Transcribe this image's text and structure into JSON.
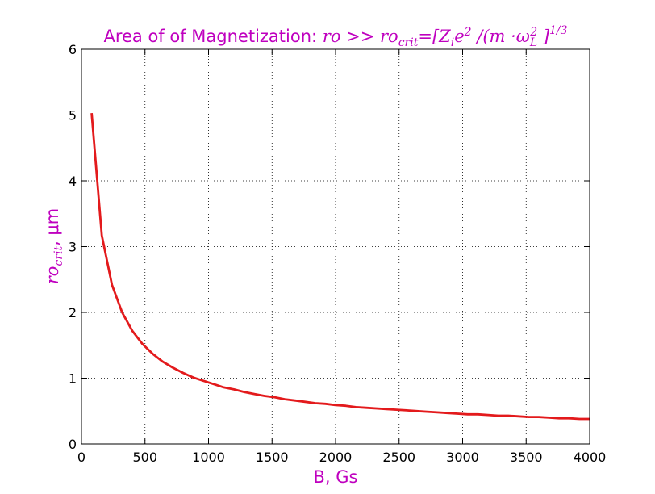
{
  "chart_data": {
    "type": "line",
    "title_prefix": "Area of of Magnetization: ",
    "title_math_1": "ro",
    "title_mid": " >> ",
    "title_math_2": "ro",
    "title_sub_crit": "crit",
    "title_eq": "=[Z",
    "title_sub_i": "i",
    "title_e": "e",
    "title_sup_2a": "2",
    "title_div": " /(m ·ω",
    "title_sub_L": "L",
    "title_sup_2b": "2",
    "title_close": " ]",
    "title_sup_13": "1/3",
    "xlabel": "B, Gs",
    "ylabel_math": "ro",
    "ylabel_sub": "crit",
    "ylabel_rest": ", μm",
    "xlim": [
      0,
      4000
    ],
    "ylim": [
      0,
      6
    ],
    "xticks": [
      0,
      500,
      1000,
      1500,
      2000,
      2500,
      3000,
      3500,
      4000
    ],
    "yticks": [
      0,
      1,
      2,
      3,
      4,
      5,
      6
    ],
    "grid": true,
    "series": [
      {
        "color": "#e31a1c",
        "x": [
          80,
          160,
          240,
          320,
          400,
          480,
          560,
          640,
          720,
          800,
          880,
          960,
          1040,
          1120,
          1200,
          1280,
          1360,
          1440,
          1520,
          1600,
          1680,
          1760,
          1840,
          1920,
          2000,
          2080,
          2160,
          2240,
          2320,
          2400,
          2480,
          2560,
          2640,
          2720,
          2800,
          2880,
          2960,
          3040,
          3120,
          3200,
          3280,
          3360,
          3440,
          3520,
          3600,
          3680,
          3760,
          3840,
          3920,
          4000
        ],
        "y": [
          5.03,
          3.17,
          2.42,
          2.0,
          1.72,
          1.52,
          1.37,
          1.25,
          1.16,
          1.08,
          1.01,
          0.96,
          0.91,
          0.86,
          0.83,
          0.79,
          0.76,
          0.73,
          0.71,
          0.68,
          0.66,
          0.64,
          0.62,
          0.61,
          0.59,
          0.58,
          0.56,
          0.55,
          0.54,
          0.53,
          0.52,
          0.51,
          0.5,
          0.49,
          0.48,
          0.47,
          0.46,
          0.45,
          0.45,
          0.44,
          0.43,
          0.43,
          0.42,
          0.41,
          0.41,
          0.4,
          0.39,
          0.39,
          0.38,
          0.38
        ]
      }
    ]
  },
  "colors": {
    "label": "#bf00bf",
    "line": "#e31a1c"
  }
}
